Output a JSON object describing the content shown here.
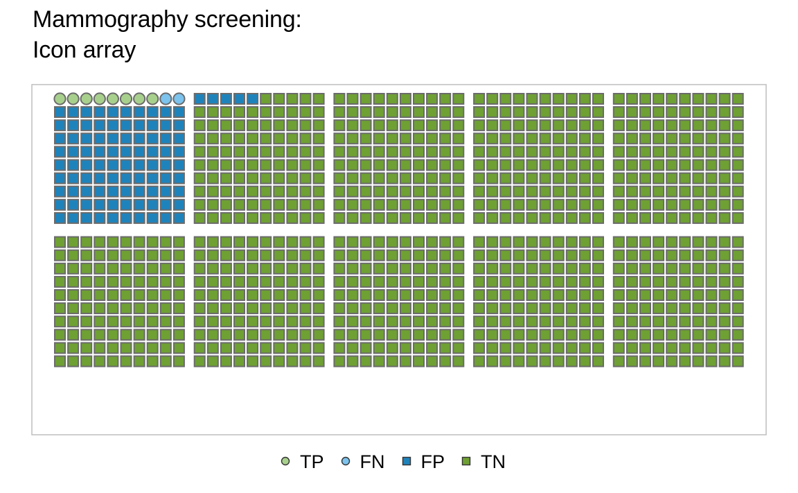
{
  "chart_data": {
    "type": "icon-array",
    "title_lines": [
      "Mammography screening:",
      "Icon array"
    ],
    "total": 1000,
    "layout": {
      "block_rows": 2,
      "block_cols": 5,
      "icons_per_block_row": 10,
      "icons_per_block_col": 10,
      "fill_order": "row-major, first block first"
    },
    "categories": [
      {
        "key": "TP",
        "label": "TP",
        "count": 8,
        "shape": "circle",
        "color": "#a8d08d"
      },
      {
        "key": "FN",
        "label": "FN",
        "count": 2,
        "shape": "circle",
        "color": "#7cc3ed"
      },
      {
        "key": "FP",
        "label": "FP",
        "count": 95,
        "shape": "square",
        "color": "#1f83bb"
      },
      {
        "key": "TN",
        "label": "TN",
        "count": 895,
        "shape": "square",
        "color": "#6ea033"
      }
    ],
    "legend_position": "bottom",
    "icon_stroke_color": "#6b6b6b",
    "frame_color": "#bdbdbd",
    "grid": false
  }
}
